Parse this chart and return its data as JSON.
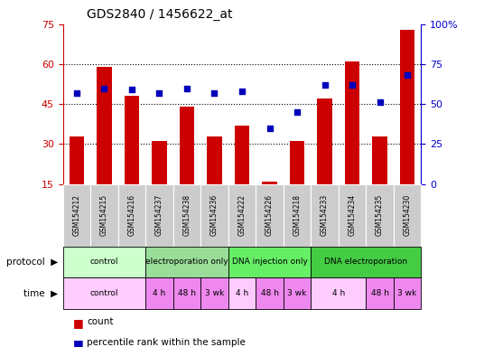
{
  "title": "GDS2840 / 1456622_at",
  "samples": [
    "GSM154212",
    "GSM154215",
    "GSM154216",
    "GSM154237",
    "GSM154238",
    "GSM154236",
    "GSM154222",
    "GSM154226",
    "GSM154218",
    "GSM154233",
    "GSM154234",
    "GSM154235",
    "GSM154230"
  ],
  "counts": [
    33,
    59,
    48,
    31,
    44,
    33,
    37,
    16,
    31,
    47,
    61,
    33,
    73
  ],
  "percentiles": [
    57,
    60,
    59,
    57,
    60,
    57,
    58,
    35,
    45,
    62,
    62,
    51,
    68
  ],
  "ylim_left": [
    15,
    75
  ],
  "ylim_right": [
    0,
    100
  ],
  "yticks_left": [
    15,
    30,
    45,
    60,
    75
  ],
  "yticks_right": [
    0,
    25,
    50,
    75,
    100
  ],
  "left_color": "#cc0000",
  "right_color": "#0000cc",
  "bar_color": "#cc0000",
  "dot_color": "#0000bb",
  "grid_color": "#000000",
  "cell_color": "#cccccc",
  "protocol_groups": [
    {
      "label": "control",
      "start": 0,
      "end": 3,
      "color": "#ccffcc"
    },
    {
      "label": "electroporation only",
      "start": 3,
      "end": 6,
      "color": "#99dd99"
    },
    {
      "label": "DNA injection only",
      "start": 6,
      "end": 9,
      "color": "#66ee66"
    },
    {
      "label": "DNA electroporation",
      "start": 9,
      "end": 13,
      "color": "#44cc44"
    }
  ],
  "time_groups": [
    {
      "label": "control",
      "start": 0,
      "end": 3,
      "color": "#ffccff"
    },
    {
      "label": "4 h",
      "start": 3,
      "end": 4,
      "color": "#ee88ee"
    },
    {
      "label": "48 h",
      "start": 4,
      "end": 5,
      "color": "#ee88ee"
    },
    {
      "label": "3 wk",
      "start": 5,
      "end": 6,
      "color": "#ee88ee"
    },
    {
      "label": "4 h",
      "start": 6,
      "end": 7,
      "color": "#ffccff"
    },
    {
      "label": "48 h",
      "start": 7,
      "end": 8,
      "color": "#ee88ee"
    },
    {
      "label": "3 wk",
      "start": 8,
      "end": 9,
      "color": "#ee88ee"
    },
    {
      "label": "4 h",
      "start": 9,
      "end": 11,
      "color": "#ffccff"
    },
    {
      "label": "48 h",
      "start": 11,
      "end": 12,
      "color": "#ee88ee"
    },
    {
      "label": "3 wk",
      "start": 12,
      "end": 13,
      "color": "#ee88ee"
    }
  ]
}
